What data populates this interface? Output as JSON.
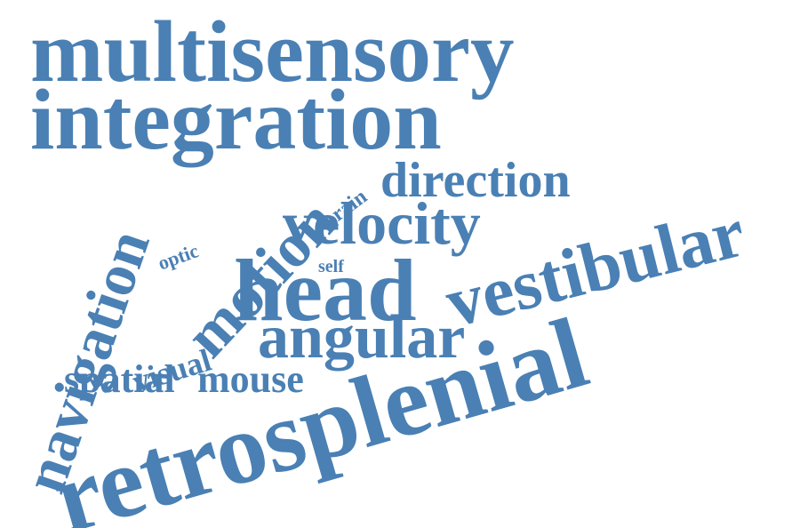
{
  "words": {
    "multisensory": "multisensory",
    "integration": "integration",
    "direction": "direction",
    "brain": "brain",
    "motion": "motion",
    "velocity": "velocity",
    "optic": "optic",
    "navigation": "navigation",
    "vestibular": "vestibular",
    "head": "head",
    "self": "self",
    "visual": "visual",
    "angular": "angular",
    "spatial": "spatial",
    "mouse": "mouse",
    "retrosplenial": "retrosplenial"
  },
  "colors": {
    "word": "#4a80b4",
    "background": "#ffffff"
  }
}
